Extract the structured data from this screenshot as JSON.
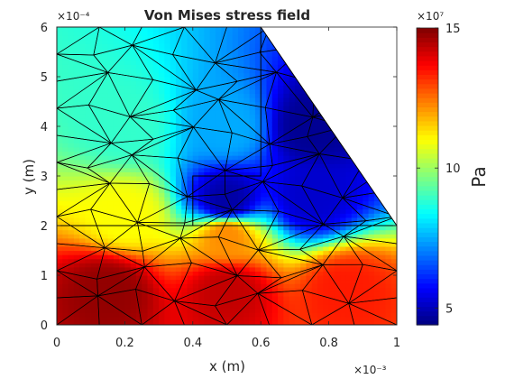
{
  "chart_data": {
    "type": "heatmap",
    "title": "Von Mises stress field",
    "xlabel": "x (m)",
    "ylabel": "y (m)",
    "x_exponent": "×10⁻³",
    "y_exponent": "×10⁻⁴",
    "xlim": [
      0,
      1
    ],
    "ylim": [
      0,
      6
    ],
    "x_ticks": [
      "0",
      "0.2",
      "0.4",
      "0.6",
      "0.8",
      "1"
    ],
    "y_ticks": [
      "0",
      "1",
      "2",
      "3",
      "4",
      "5",
      "6"
    ],
    "colorbar": {
      "label": "Pa",
      "exponent": "×10⁷",
      "range": [
        4.4,
        15
      ],
      "ticks": [
        "5",
        "10",
        "15"
      ],
      "tick_values": [
        5,
        10,
        15
      ],
      "colormap": "jet"
    },
    "geometry": {
      "outline": [
        [
          0,
          0
        ],
        [
          1,
          0
        ],
        [
          1,
          2
        ],
        [
          0.6,
          6
        ],
        [
          0,
          6
        ]
      ],
      "region_boundaries": [
        [
          [
            0,
            2
          ],
          [
            1,
            2
          ]
        ],
        [
          [
            0.4,
            2
          ],
          [
            0.4,
            3
          ],
          [
            0.6,
            3
          ],
          [
            0.6,
            6
          ]
        ]
      ]
    },
    "stress_samples": [
      {
        "x": 0.15,
        "y": 0.7,
        "value": 14.8
      },
      {
        "x": 0.5,
        "y": 0.7,
        "value": 14.3
      },
      {
        "x": 0.85,
        "y": 0.7,
        "value": 13.4
      },
      {
        "x": 0.5,
        "y": 1.8,
        "value": 12.2
      },
      {
        "x": 0.2,
        "y": 2.2,
        "value": 11.0
      },
      {
        "x": 0.2,
        "y": 4.0,
        "value": 8.9
      },
      {
        "x": 0.5,
        "y": 4.0,
        "value": 7.5
      },
      {
        "x": 0.75,
        "y": 4.0,
        "value": 4.6
      },
      {
        "x": 0.75,
        "y": 2.6,
        "value": 5.2
      },
      {
        "x": 0.5,
        "y": 2.5,
        "value": 4.8
      }
    ]
  }
}
